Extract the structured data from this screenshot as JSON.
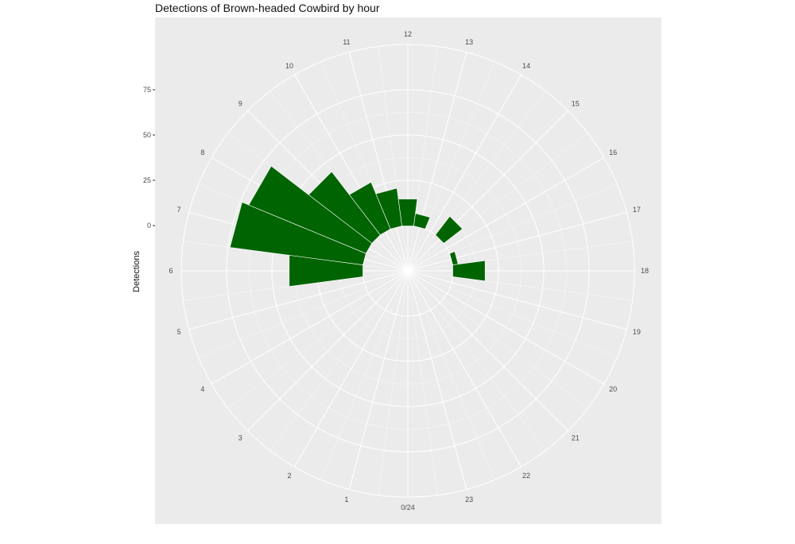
{
  "chart_data": {
    "type": "bar",
    "coord": "polar",
    "title": "Detections of Brown-headed Cowbird by hour",
    "xlabel": "",
    "ylabel": "Detections",
    "categories": [
      "0/24",
      "1",
      "2",
      "3",
      "4",
      "5",
      "6",
      "7",
      "8",
      "9",
      "10",
      "11",
      "12",
      "13",
      "14",
      "15",
      "16",
      "17",
      "18",
      "19",
      "20",
      "21",
      "22",
      "23"
    ],
    "values": [
      0,
      0,
      0,
      0,
      0,
      0,
      41,
      74,
      70,
      44,
      28,
      21,
      15,
      7,
      0,
      13,
      0,
      3,
      18,
      0,
      0,
      0,
      0,
      0
    ],
    "y_ticks": [
      "0",
      "25",
      "50",
      "75"
    ],
    "ylim": [
      -25,
      100
    ],
    "bar_color": "#006400",
    "panel_color": "#ebebeb",
    "grid_color": "#ffffff",
    "grid": true,
    "legend": "none"
  }
}
